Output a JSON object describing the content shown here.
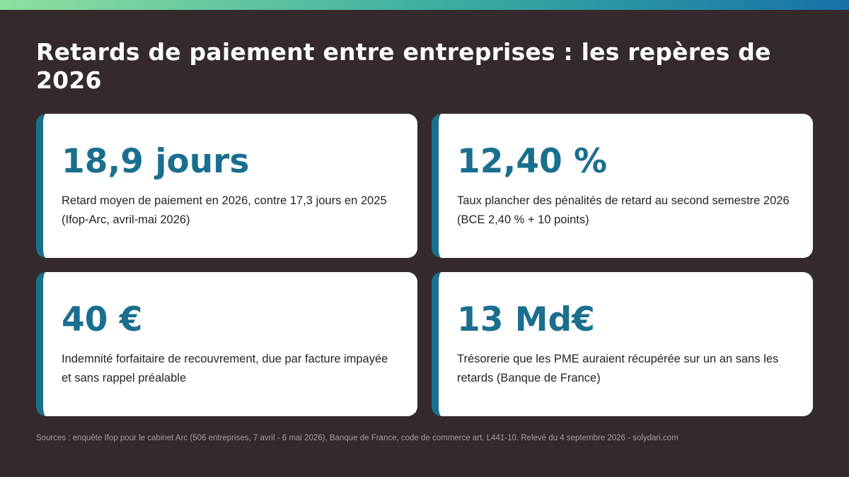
{
  "title": "Retards de paiement entre entreprises : les repères de 2026",
  "cards": [
    {
      "value": "18,9 jours",
      "description": "Retard moyen de paiement en 2026, contre 17,3 jours en 2025 (Ifop-Arc, avril-mai 2026)"
    },
    {
      "value": "12,40 %",
      "description": "Taux plancher des pénalités de retard au second semestre 2026 (BCE 2,40 % + 10 points)"
    },
    {
      "value": "40 €",
      "description": "Indemnité forfaitaire de recouvrement, due par facture impayée et sans rappel préalable"
    },
    {
      "value": "13 Md€",
      "description": "Trésorerie que les PME auraient récupérée sur un an sans les retards (Banque de France)"
    }
  ],
  "sources": "Sources : enquête Ifop pour le cabinet Arc (506 entreprises, 7 avril - 6 mai 2026), Banque de France, code de commerce art. L441-10. Relevé du 4 septembre 2026 - solydari.com",
  "colors": {
    "background": "#352a2b",
    "accent": "#1a6f8e",
    "card": "#ffffff",
    "gradient_start": "#8fe0a0",
    "gradient_end": "#1572a8"
  }
}
